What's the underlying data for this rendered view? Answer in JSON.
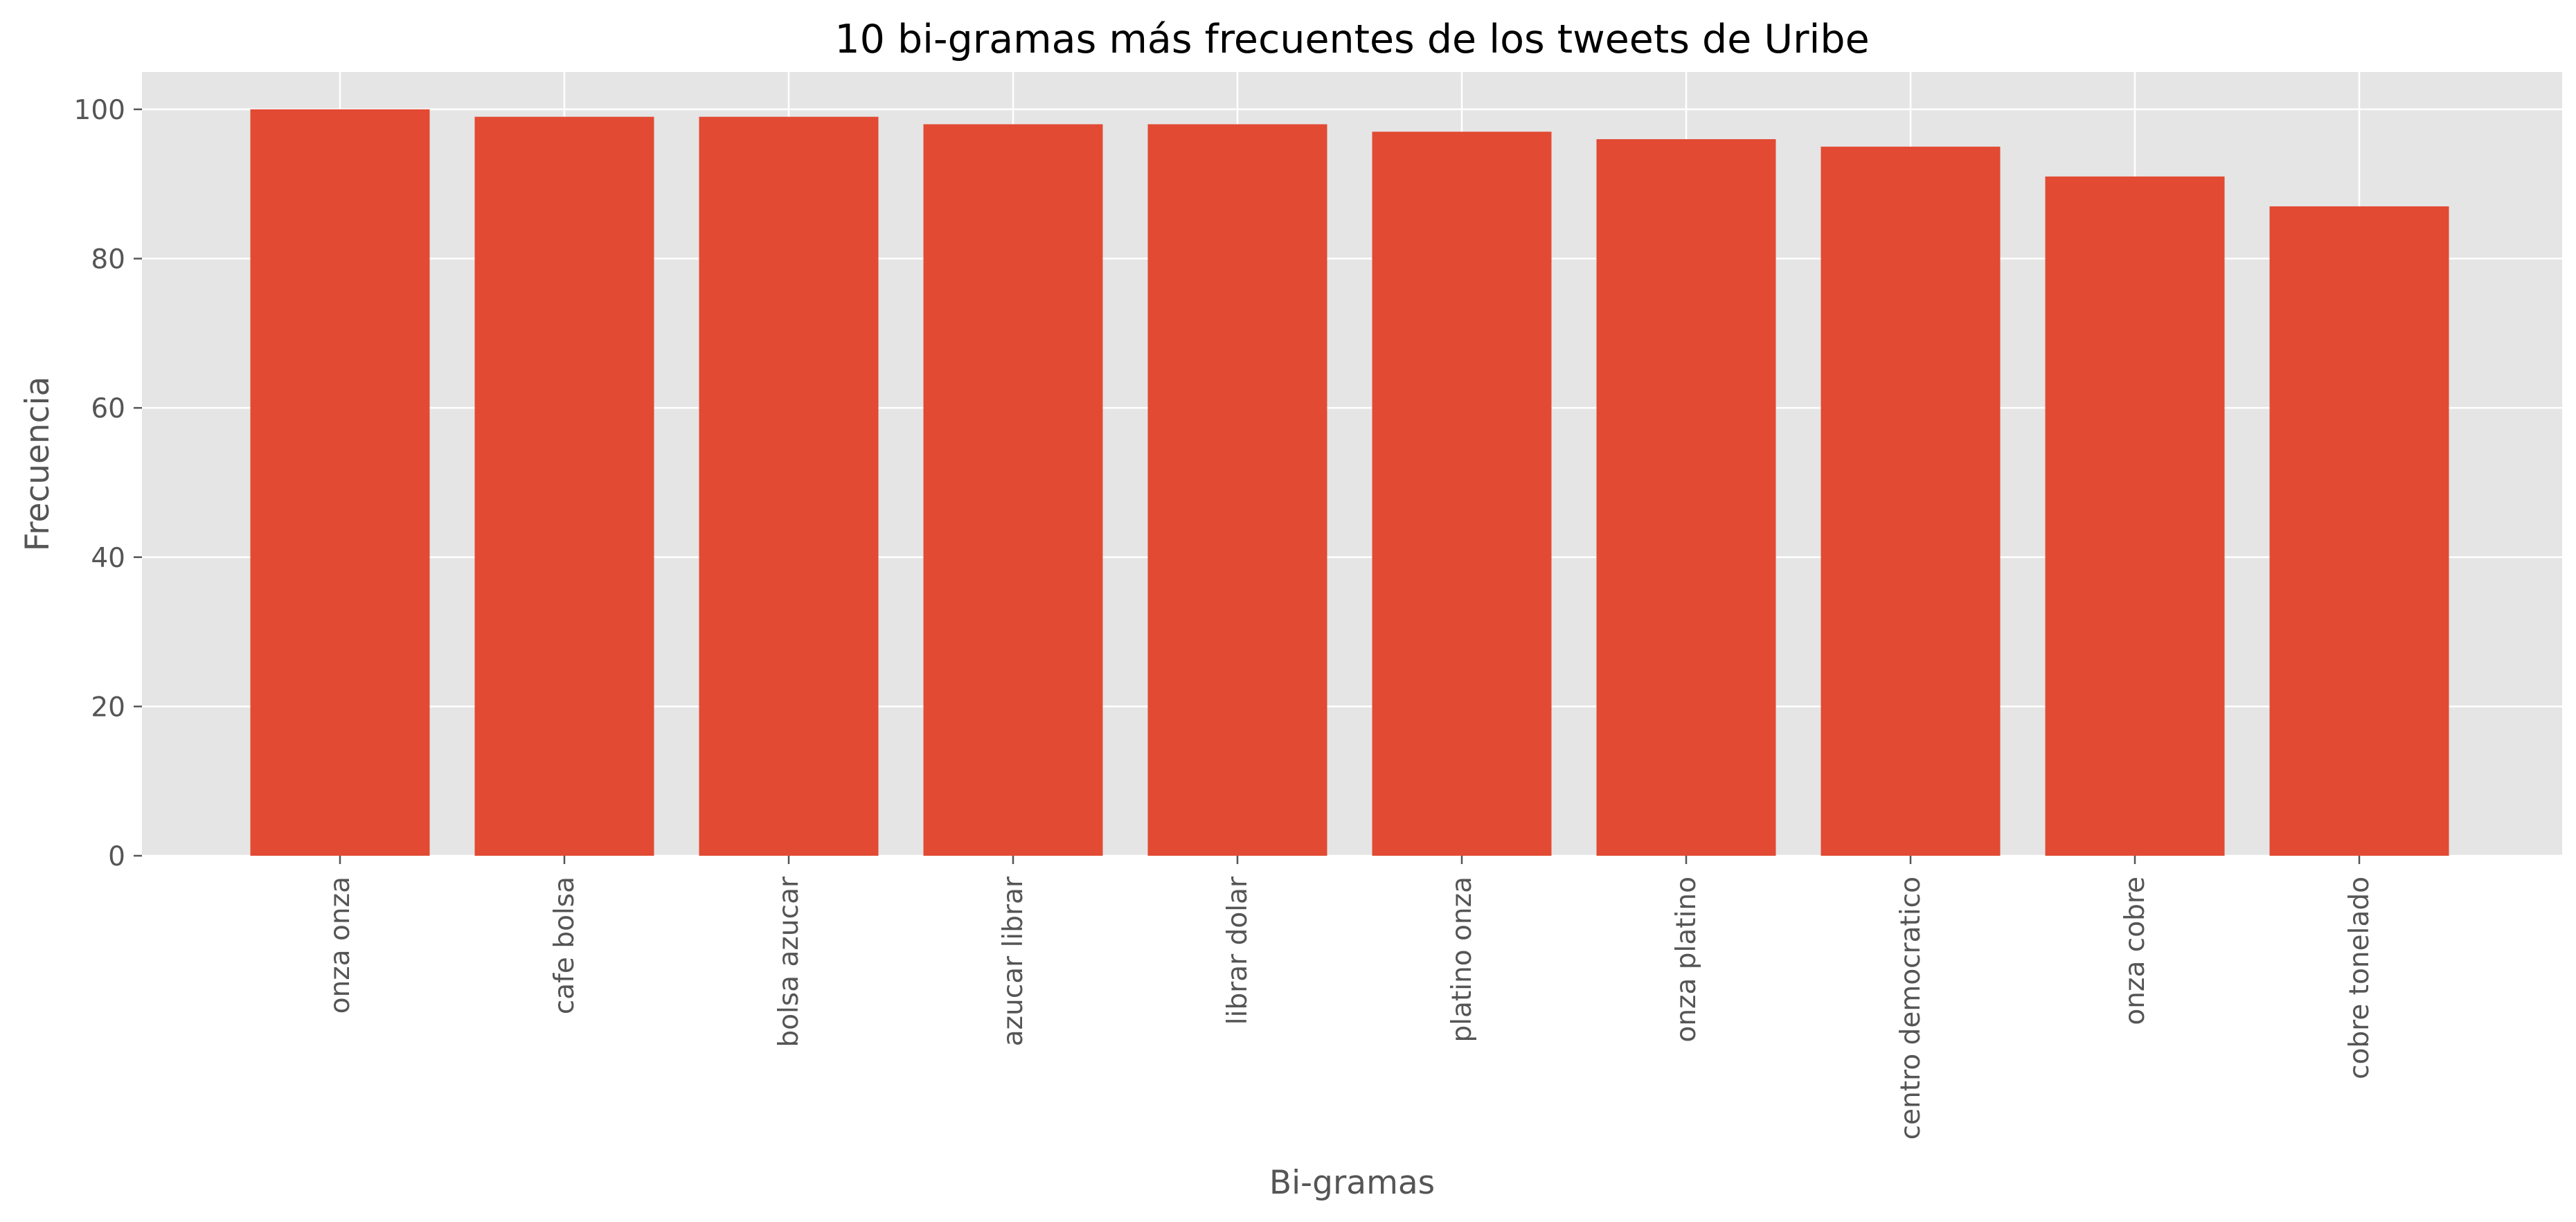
{
  "chart_data": {
    "type": "bar",
    "title": "10 bi-gramas más frecuentes de los tweets de Uribe",
    "xlabel": "Bi-gramas",
    "ylabel": "Frecuencia",
    "categories": [
      "onza onza",
      "cafe bolsa",
      "bolsa azucar",
      "azucar librar",
      "librar dolar",
      "platino onza",
      "onza platino",
      "centro democratico",
      "onza cobre",
      "cobre tonelado"
    ],
    "values": [
      100,
      99,
      99,
      98,
      98,
      97,
      96,
      95,
      91,
      87
    ],
    "ylim": [
      0,
      105
    ],
    "yticks": [
      0,
      20,
      40,
      60,
      80,
      100
    ],
    "grid": true,
    "legend": "none",
    "colors": {
      "bar": "#E24A33",
      "plot_background": "#E5E5E5",
      "grid": "#FFFFFF",
      "tick_text": "#555555"
    }
  }
}
